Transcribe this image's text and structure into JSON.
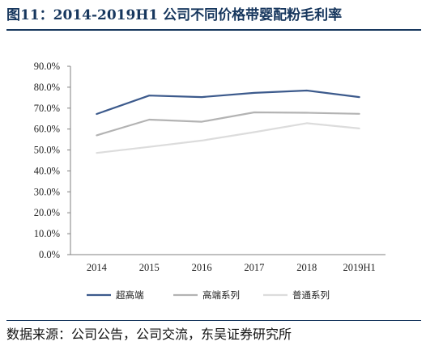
{
  "figure": {
    "title": "图11：2014-2019H1 公司不同价格带婴配粉毛利率",
    "source": "数据来源：公司公告，公司交流，东吴证券研究所"
  },
  "chart_data": {
    "type": "line",
    "categories": [
      "2014",
      "2015",
      "2016",
      "2017",
      "2018",
      "2019H1"
    ],
    "series": [
      {
        "name": "超高端",
        "color": "#3c5a8c",
        "values": [
          67.2,
          76.0,
          75.3,
          77.3,
          78.4,
          75.3
        ]
      },
      {
        "name": "高端系列",
        "color": "#b3b3b3",
        "values": [
          57.0,
          64.5,
          63.5,
          68.0,
          67.8,
          67.3
        ]
      },
      {
        "name": "普通系列",
        "color": "#dcdcdc",
        "values": [
          48.6,
          51.5,
          54.5,
          58.5,
          62.8,
          60.3
        ]
      }
    ],
    "ylim": [
      0,
      90
    ],
    "yticks": [
      "0.0%",
      "10.0%",
      "20.0%",
      "30.0%",
      "40.0%",
      "50.0%",
      "60.0%",
      "70.0%",
      "80.0%",
      "90.0%"
    ],
    "ytick_values": [
      0,
      10,
      20,
      30,
      40,
      50,
      60,
      70,
      80,
      90
    ],
    "grid": false,
    "legend_position": "bottom"
  }
}
